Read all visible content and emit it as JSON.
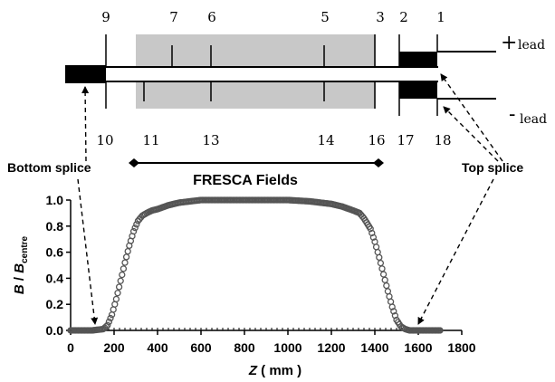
{
  "diagram": {
    "top_numbers": {
      "n9": "9",
      "n7": "7",
      "n6": "6",
      "n5": "5",
      "n3": "3",
      "n2": "2",
      "n1": "1"
    },
    "bottom_numbers": {
      "n10": "10",
      "n11": "11",
      "n13": "13",
      "n14": "14",
      "n16": "16",
      "n17": "17",
      "n18": "18"
    },
    "lead_plus": {
      "sign": "+",
      "word": "lead"
    },
    "lead_minus": {
      "sign": "-",
      "word": "lead"
    },
    "bottom_splice_label": "Bottom splice",
    "top_splice_label": "Top splice",
    "fresca_label": "FRESCA Fields",
    "colors": {
      "field_region": "#c8c8c8",
      "ink": "#000000"
    }
  },
  "chart_data": {
    "type": "scatter",
    "xlabel": "Z (mm)",
    "ylabel": "B / B_centre",
    "xlim": [
      0,
      1800
    ],
    "ylim": [
      0,
      1.0
    ],
    "xticks": [
      "0",
      "200",
      "400",
      "600",
      "800",
      "1000",
      "1200",
      "1400",
      "1600",
      "1800"
    ],
    "yticks": [
      "0.0",
      "0.2",
      "0.4",
      "0.6",
      "0.8",
      "1.0"
    ],
    "grid": false,
    "series": [
      {
        "marker": "open-circle",
        "x": [
          0,
          100,
          150,
          170,
          190,
          210,
          230,
          250,
          270,
          290,
          310,
          330,
          350,
          375,
          400,
          450,
          500,
          550,
          600,
          700,
          800,
          900,
          1000,
          1100,
          1200,
          1250,
          1300,
          1330,
          1350,
          1380,
          1400,
          1420,
          1440,
          1460,
          1480,
          1500,
          1520,
          1540,
          1560,
          1600,
          1700
        ],
        "y": [
          0.0,
          0.0,
          0.01,
          0.04,
          0.12,
          0.24,
          0.38,
          0.52,
          0.65,
          0.76,
          0.84,
          0.88,
          0.9,
          0.92,
          0.93,
          0.96,
          0.98,
          0.99,
          1.0,
          1.0,
          1.0,
          1.0,
          1.0,
          0.99,
          0.97,
          0.95,
          0.92,
          0.9,
          0.86,
          0.78,
          0.68,
          0.56,
          0.43,
          0.3,
          0.18,
          0.08,
          0.03,
          0.01,
          0.0,
          0.0,
          0.0
        ]
      }
    ]
  }
}
